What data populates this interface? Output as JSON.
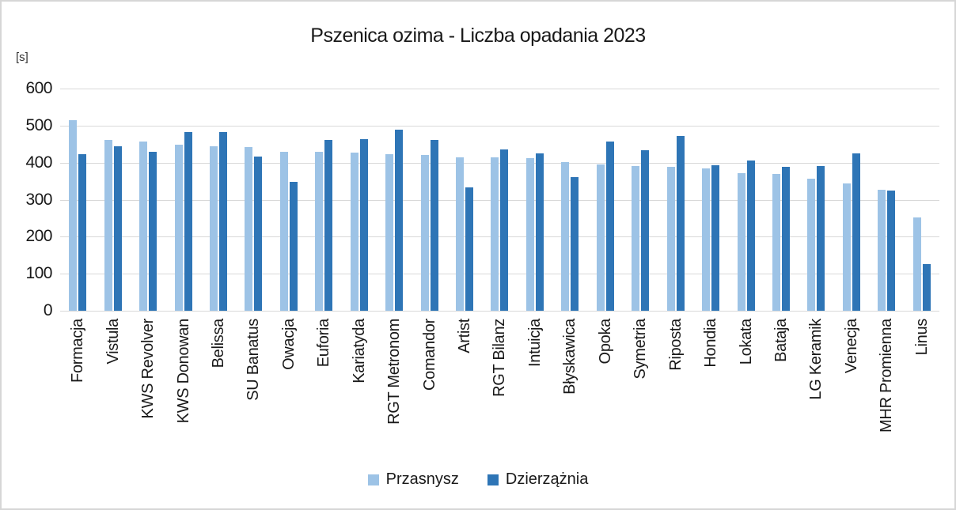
{
  "chart_data": {
    "type": "bar",
    "title": "Pszenica ozima - Liczba opadania 2023",
    "ylabel": "[s]",
    "xlabel": "",
    "ylim": [
      0,
      600
    ],
    "ytick_step": 100,
    "grid": true,
    "legend_position": "bottom",
    "categories": [
      "Formacja",
      "Vistula",
      "KWS Revolver",
      "KWS Donowan",
      "Belissa",
      "SU Banatus",
      "Owacja",
      "Euforia",
      "Kariatyda",
      "RGT Metronom",
      "Comandor",
      "Artist",
      "RGT Bilanz",
      "Intuicja",
      "Błyskawica",
      "Opoka",
      "Symetria",
      "Riposta",
      "Hondia",
      "Lokata",
      "Bataja",
      "LG Keramik",
      "Venecja",
      "MHR Promienna",
      "Linus"
    ],
    "series": [
      {
        "name": "Przasnysz",
        "color": "#9DC3E6",
        "values": [
          515,
          462,
          456,
          448,
          445,
          441,
          430,
          430,
          428,
          422,
          420,
          415,
          415,
          412,
          401,
          394,
          390,
          388,
          385,
          372,
          369,
          356,
          343,
          327,
          253
        ]
      },
      {
        "name": "Dzierzążnia",
        "color": "#2E75B6",
        "values": [
          423,
          445,
          429,
          482,
          482,
          417,
          349,
          461,
          463,
          488,
          461,
          334,
          435,
          425,
          361,
          458,
          433,
          471,
          392,
          405,
          388,
          391,
          426,
          324,
          126
        ]
      }
    ],
    "colors": {
      "gridline": "#D9D9D9",
      "text": "#191919",
      "frame_border": "#D6D6D6"
    }
  }
}
